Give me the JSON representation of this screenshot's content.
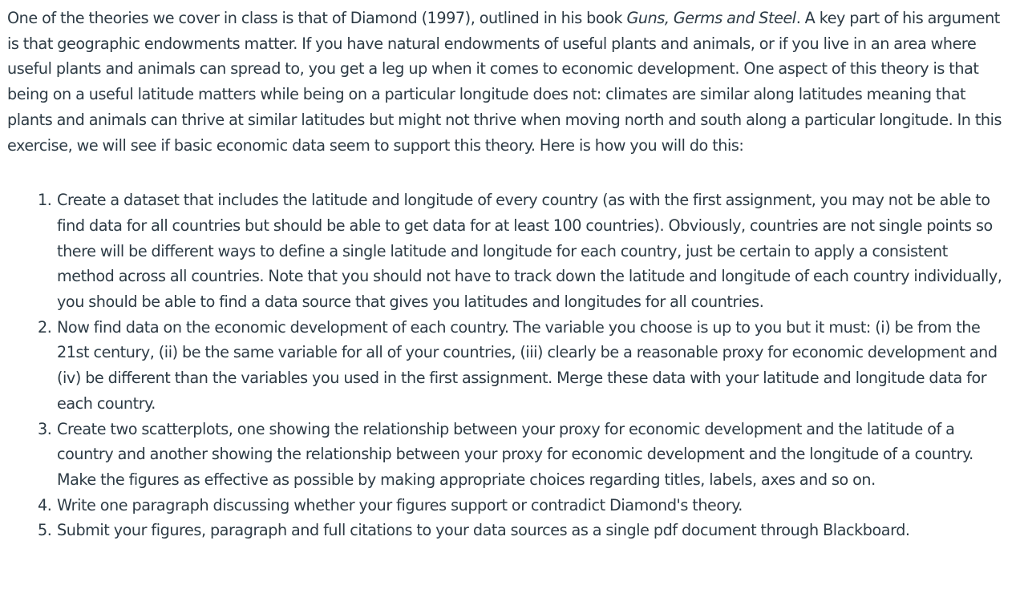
{
  "intro": {
    "part1": "One of the theories we cover in class is that of Diamond (1997), outlined in his book ",
    "book_title": "Guns, Germs and Steel",
    "part2": ". A key part of his argument is that geographic endowments matter. If you have natural endowments of useful plants and animals, or if you live in an area where useful plants and animals can spread to, you get a leg up when it comes to economic development. One aspect of this theory is that being on a useful latitude matters while being on a particular longitude does not: climates are similar along latitudes meaning that plants and animals can thrive at similar latitudes but might not thrive when moving north and south along a particular longitude. In this exercise, we will see if basic economic data seem to support this theory. Here is how you will do this:"
  },
  "steps": [
    {
      "number": "1.",
      "text": "Create a dataset that includes the latitude and longitude of every country (as with the first assignment, you may not be able to find data for all countries but should be able to get data for at least 100 countries). Obviously, countries are not single points so there will be different ways to define a single latitude and longitude for each country, just be certain to apply a consistent method across all countries. Note that you should not have to track down the latitude and longitude of each country individually, you should be able to find a data source that gives you latitudes and longitudes for all countries."
    },
    {
      "number": "2.",
      "text": "Now find data on the economic development of each country. The variable you choose is up to you but it must: (i) be from the 21st century, (ii) be the same variable for all of your countries, (iii) clearly be a reasonable proxy for economic development and (iv) be different than the variables you used in the first assignment. Merge these data with your latitude and longitude data for each country."
    },
    {
      "number": "3.",
      "text": "Create two scatterplots, one showing the relationship between your proxy for economic development and the latitude of a country and another showing the relationship between your proxy for economic development and the longitude of a country. Make the figures as effective as possible by making appropriate choices regarding titles, labels, axes and so on."
    },
    {
      "number": "4.",
      "text": "Write one paragraph discussing whether your figures support or contradict Diamond's theory."
    },
    {
      "number": "5.",
      "text": "Submit your figures, paragraph and full citations to your data sources as a single pdf document through Blackboard."
    }
  ]
}
